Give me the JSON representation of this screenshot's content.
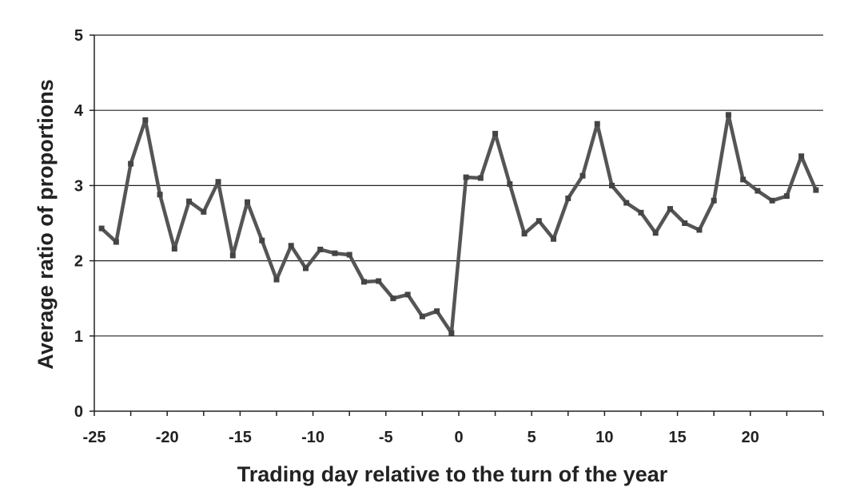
{
  "chart_data": {
    "type": "line",
    "title": "",
    "xlabel": "Trading day relative to the turn of the year",
    "ylabel": "Average ratio of proportions",
    "xlim": [
      -25,
      25
    ],
    "ylim": [
      0,
      5
    ],
    "x_ticks": [
      -25,
      -20,
      -15,
      -10,
      -5,
      0,
      5,
      10,
      15,
      20
    ],
    "x_tick_labels": [
      "-25",
      "-20",
      "-15",
      "-10",
      "-5",
      "0",
      "5",
      "10",
      "15",
      "20"
    ],
    "y_ticks": [
      0,
      1,
      2,
      3,
      4,
      5
    ],
    "y_tick_labels": [
      "0",
      "1",
      "2",
      "3",
      "4",
      "5"
    ],
    "grid": "horizontal",
    "legend": "none",
    "line_color": "#555555",
    "series": [
      {
        "x": [
          -24.5,
          -23.5,
          -22.5,
          -21.5,
          -20.5,
          -19.5,
          -18.5,
          -17.5,
          -16.5,
          -15.5,
          -14.5,
          -13.5,
          -12.5,
          -11.5,
          -10.5,
          -9.5,
          -8.5,
          -7.5,
          -6.5,
          -5.5,
          -4.5,
          -3.5,
          -2.5,
          -1.5,
          -0.5,
          0.5,
          1.5,
          2.5,
          3.5,
          4.5,
          5.5,
          6.5,
          7.5,
          8.5,
          9.5,
          10.5,
          11.5,
          12.5,
          13.5,
          14.5,
          15.5,
          16.5,
          17.5,
          18.5,
          19.5,
          20.5,
          21.5,
          22.5,
          23.5,
          24.5
        ],
        "values": [
          2.43,
          2.25,
          3.29,
          3.87,
          2.88,
          2.16,
          2.79,
          2.65,
          3.05,
          2.07,
          2.78,
          2.27,
          1.75,
          2.2,
          1.9,
          2.15,
          2.1,
          2.08,
          1.72,
          1.73,
          1.5,
          1.55,
          1.26,
          1.33,
          1.04,
          3.11,
          3.1,
          3.69,
          3.02,
          2.36,
          2.53,
          2.29,
          2.83,
          3.13,
          3.82,
          3.0,
          2.77,
          2.64,
          2.37,
          2.69,
          2.5,
          2.41,
          2.8,
          3.94,
          3.08,
          2.93,
          2.8,
          2.86,
          3.39,
          2.94
        ]
      }
    ]
  }
}
